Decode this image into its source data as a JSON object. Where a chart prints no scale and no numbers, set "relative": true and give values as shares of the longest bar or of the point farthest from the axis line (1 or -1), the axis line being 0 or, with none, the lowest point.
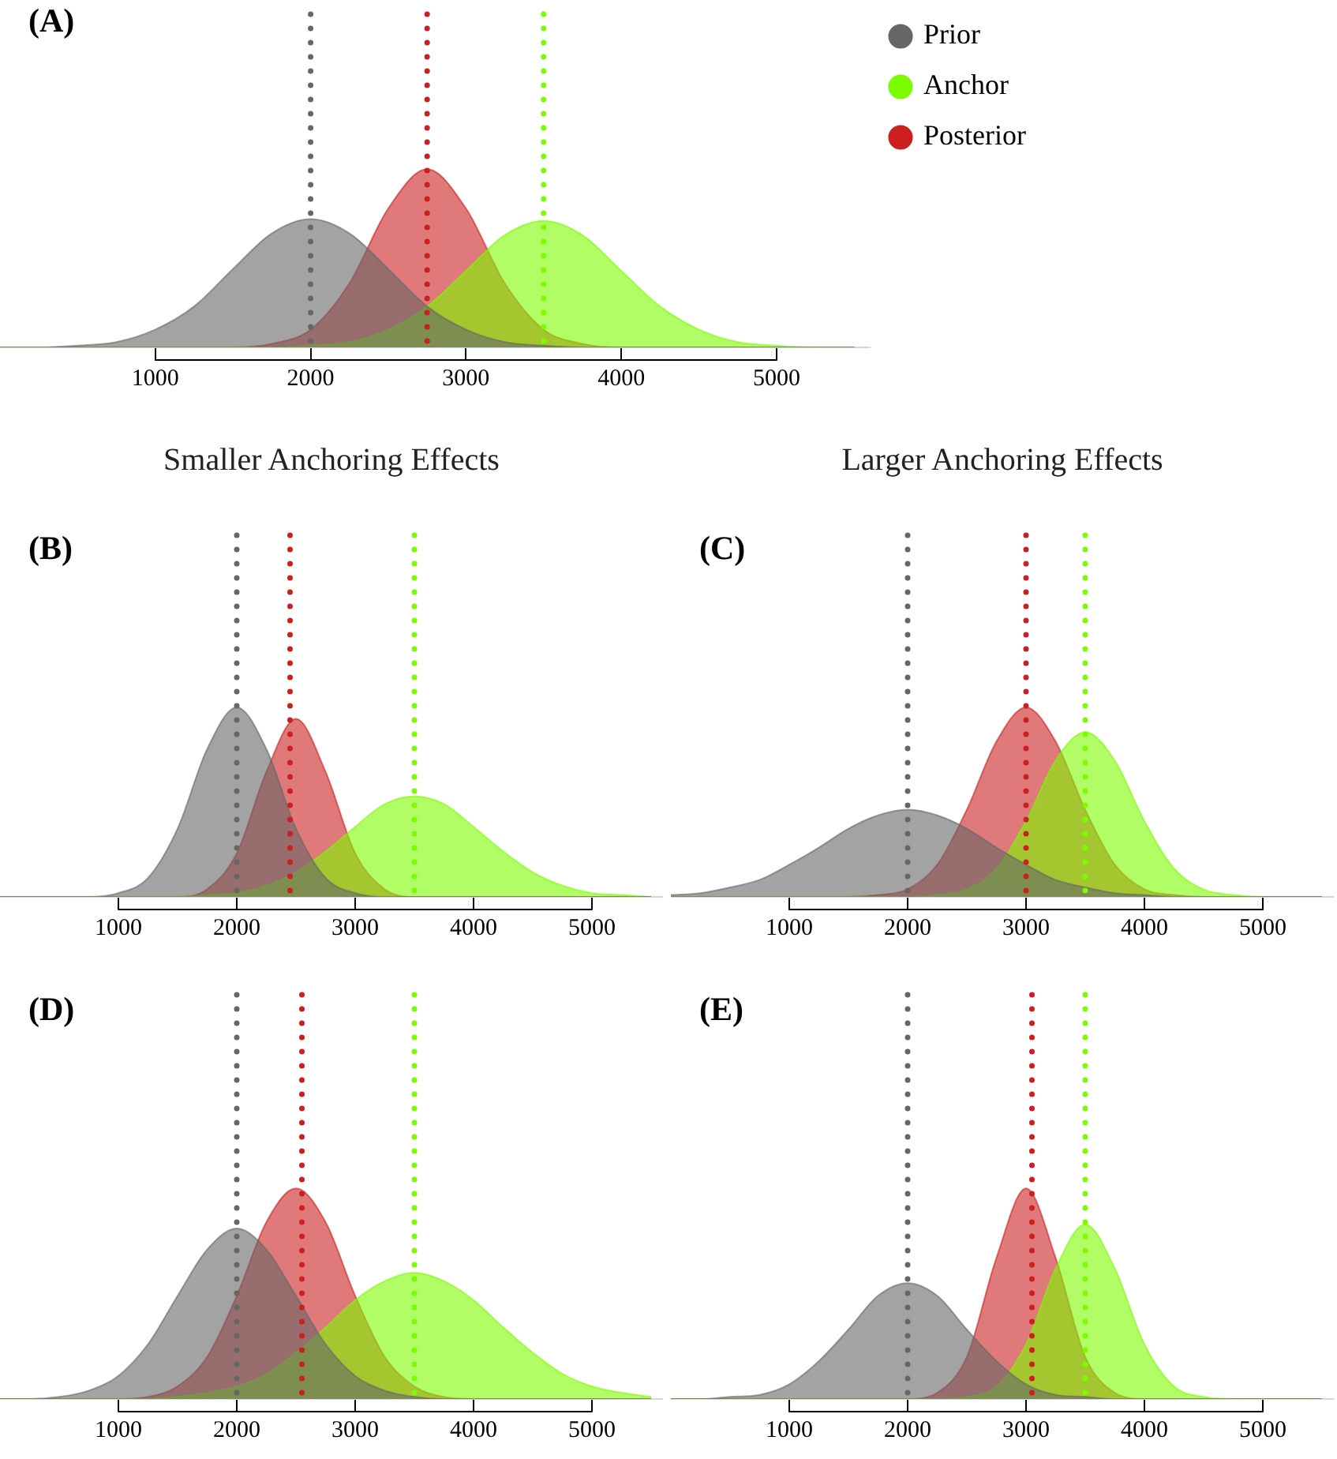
{
  "chart_data": [
    {
      "type": "area",
      "annotations": [
        "(A)"
      ],
      "legend": "right",
      "relative": true,
      "x": [
        0,
        250,
        500,
        750,
        1000,
        1250,
        1500,
        1750,
        2000,
        2250,
        2500,
        2750,
        3000,
        3250,
        3500,
        3750,
        4000,
        4250,
        4500,
        4750,
        5000,
        5250,
        5500
      ],
      "xlim": [
        0,
        5600
      ],
      "xticks": [
        1000,
        2000,
        3000,
        4000,
        5000
      ],
      "series": [
        {
          "name": "Prior",
          "color": "#666666",
          "values": [
            0,
            0,
            0.01,
            0.03,
            0.1,
            0.23,
            0.44,
            0.64,
            0.72,
            0.64,
            0.44,
            0.23,
            0.1,
            0.03,
            0.01,
            0,
            0,
            0,
            0,
            0,
            0,
            0,
            0
          ]
        },
        {
          "name": "Anchor",
          "color": "#7cfc00",
          "values": [
            0,
            0,
            0,
            0,
            0,
            0,
            0,
            0,
            0.01,
            0.03,
            0.1,
            0.23,
            0.43,
            0.63,
            0.71,
            0.63,
            0.43,
            0.23,
            0.1,
            0.03,
            0.01,
            0,
            0
          ]
        },
        {
          "name": "Posterior",
          "color": "#cc1f1f",
          "values": [
            0,
            0,
            0,
            0,
            0,
            0,
            0,
            0.02,
            0.1,
            0.36,
            0.78,
            1,
            0.78,
            0.36,
            0.1,
            0.02,
            0,
            0,
            0,
            0,
            0,
            0,
            0
          ]
        }
      ],
      "ref_lines": [
        {
          "axis": "x",
          "value": 2000,
          "color": "#666666",
          "line_style": "dotted"
        },
        {
          "axis": "x",
          "value": 2750,
          "color": "#cc1f1f",
          "line_style": "dotted"
        },
        {
          "axis": "x",
          "value": 3500,
          "color": "#7cfc00",
          "line_style": "dotted"
        }
      ]
    },
    {
      "type": "area",
      "title": "Smaller Anchoring Effects",
      "annotations": [
        "(B)"
      ],
      "relative": true,
      "x": [
        0,
        250,
        500,
        750,
        1000,
        1250,
        1500,
        1750,
        2000,
        2250,
        2500,
        2750,
        3000,
        3250,
        3500,
        3750,
        4000,
        4250,
        4500,
        4750,
        5000,
        5250,
        5500
      ],
      "xlim": [
        0,
        5600
      ],
      "xticks": [
        1000,
        2000,
        3000,
        4000,
        5000
      ],
      "series": [
        {
          "color": "#666666",
          "values": [
            0,
            0,
            0,
            0,
            0.02,
            0.1,
            0.36,
            0.78,
            1,
            0.78,
            0.36,
            0.1,
            0.02,
            0,
            0,
            0,
            0,
            0,
            0,
            0,
            0,
            0,
            0
          ]
        },
        {
          "color": "#7cfc00",
          "values": [
            0,
            0,
            0,
            0,
            0,
            0,
            0,
            0.01,
            0.02,
            0.06,
            0.13,
            0.24,
            0.37,
            0.49,
            0.53,
            0.49,
            0.37,
            0.24,
            0.13,
            0.06,
            0.02,
            0.01,
            0
          ]
        },
        {
          "color": "#cc1f1f",
          "values": [
            0,
            0,
            0,
            0,
            0,
            0,
            0,
            0.04,
            0.23,
            0.66,
            0.94,
            0.66,
            0.23,
            0.04,
            0,
            0,
            0,
            0,
            0,
            0,
            0,
            0,
            0
          ]
        }
      ],
      "ref_lines": [
        {
          "axis": "x",
          "value": 2000,
          "color": "#666666",
          "line_style": "dotted"
        },
        {
          "axis": "x",
          "value": 2450,
          "color": "#cc1f1f",
          "line_style": "dotted"
        },
        {
          "axis": "x",
          "value": 3500,
          "color": "#7cfc00",
          "line_style": "dotted"
        }
      ]
    },
    {
      "type": "area",
      "title": "Larger Anchoring Effects",
      "annotations": [
        "(C)"
      ],
      "relative": true,
      "x": [
        0,
        250,
        500,
        750,
        1000,
        1250,
        1500,
        1750,
        2000,
        2250,
        2500,
        2750,
        3000,
        3250,
        3500,
        3750,
        4000,
        4250,
        4500,
        4750,
        5000,
        5250,
        5500
      ],
      "xlim": [
        0,
        5600
      ],
      "xticks": [
        1000,
        2000,
        3000,
        4000,
        5000
      ],
      "series": [
        {
          "color": "#666666",
          "values": [
            0.01,
            0.02,
            0.05,
            0.09,
            0.17,
            0.26,
            0.36,
            0.43,
            0.46,
            0.43,
            0.36,
            0.26,
            0.17,
            0.09,
            0.05,
            0.02,
            0.01,
            0,
            0,
            0,
            0,
            0,
            0
          ]
        },
        {
          "color": "#7cfc00",
          "values": [
            0,
            0,
            0,
            0,
            0,
            0,
            0,
            0,
            0,
            0.01,
            0.04,
            0.15,
            0.4,
            0.72,
            0.87,
            0.72,
            0.4,
            0.15,
            0.04,
            0.01,
            0,
            0,
            0
          ]
        },
        {
          "color": "#cc1f1f",
          "values": [
            0,
            0,
            0,
            0,
            0,
            0,
            0,
            0.01,
            0.04,
            0.17,
            0.46,
            0.82,
            1,
            0.82,
            0.46,
            0.17,
            0.04,
            0.01,
            0,
            0,
            0,
            0,
            0
          ]
        }
      ],
      "ref_lines": [
        {
          "axis": "x",
          "value": 2000,
          "color": "#666666",
          "line_style": "dotted"
        },
        {
          "axis": "x",
          "value": 3000,
          "color": "#cc1f1f",
          "line_style": "dotted"
        },
        {
          "axis": "x",
          "value": 3500,
          "color": "#7cfc00",
          "line_style": "dotted"
        }
      ]
    },
    {
      "type": "area",
      "annotations": [
        "(D)"
      ],
      "relative": true,
      "x": [
        0,
        250,
        500,
        750,
        1000,
        1250,
        1500,
        1750,
        2000,
        2250,
        2500,
        2750,
        3000,
        3250,
        3500,
        3750,
        4000,
        4250,
        4500,
        4750,
        5000,
        5250,
        5500
      ],
      "xlim": [
        0,
        5600
      ],
      "xticks": [
        1000,
        2000,
        3000,
        4000,
        5000
      ],
      "series": [
        {
          "color": "#666666",
          "values": [
            0,
            0,
            0.01,
            0.04,
            0.11,
            0.26,
            0.49,
            0.71,
            0.81,
            0.71,
            0.49,
            0.26,
            0.11,
            0.04,
            0.01,
            0,
            0,
            0,
            0,
            0,
            0,
            0,
            0
          ]
        },
        {
          "color": "#7cfc00",
          "values": [
            0,
            0,
            0,
            0,
            0,
            0,
            0.01,
            0.03,
            0.06,
            0.12,
            0.22,
            0.34,
            0.47,
            0.56,
            0.6,
            0.56,
            0.47,
            0.34,
            0.22,
            0.12,
            0.06,
            0.03,
            0.01
          ]
        },
        {
          "color": "#cc1f1f",
          "values": [
            0,
            0,
            0,
            0,
            0,
            0.01,
            0.06,
            0.2,
            0.49,
            0.84,
            1,
            0.84,
            0.49,
            0.2,
            0.06,
            0.01,
            0,
            0,
            0,
            0,
            0,
            0,
            0
          ]
        }
      ],
      "ref_lines": [
        {
          "axis": "x",
          "value": 2000,
          "color": "#666666",
          "line_style": "dotted"
        },
        {
          "axis": "x",
          "value": 2550,
          "color": "#cc1f1f",
          "line_style": "dotted"
        },
        {
          "axis": "x",
          "value": 3500,
          "color": "#7cfc00",
          "line_style": "dotted"
        }
      ]
    },
    {
      "type": "area",
      "annotations": [
        "(E)"
      ],
      "relative": true,
      "x": [
        0,
        250,
        500,
        750,
        1000,
        1250,
        1500,
        1750,
        2000,
        2250,
        2500,
        2750,
        3000,
        3250,
        3500,
        3750,
        4000,
        4250,
        4500,
        4750,
        5000,
        5250,
        5500
      ],
      "xlim": [
        0,
        5600
      ],
      "xticks": [
        1000,
        2000,
        3000,
        4000,
        5000
      ],
      "series": [
        {
          "color": "#666666",
          "values": [
            0,
            0,
            0.01,
            0.02,
            0.07,
            0.18,
            0.33,
            0.49,
            0.55,
            0.49,
            0.33,
            0.18,
            0.07,
            0.02,
            0.01,
            0,
            0,
            0,
            0,
            0,
            0,
            0,
            0
          ]
        },
        {
          "color": "#7cfc00",
          "values": [
            0,
            0,
            0,
            0,
            0,
            0,
            0,
            0,
            0,
            0,
            0.01,
            0.06,
            0.26,
            0.62,
            0.83,
            0.62,
            0.26,
            0.06,
            0.01,
            0,
            0,
            0,
            0
          ]
        },
        {
          "color": "#cc1f1f",
          "values": [
            0,
            0,
            0,
            0,
            0,
            0,
            0,
            0,
            0,
            0.03,
            0.2,
            0.67,
            1,
            0.67,
            0.2,
            0.03,
            0,
            0,
            0,
            0,
            0,
            0,
            0
          ]
        }
      ],
      "ref_lines": [
        {
          "axis": "x",
          "value": 2000,
          "color": "#666666",
          "line_style": "dotted"
        },
        {
          "axis": "x",
          "value": 3050,
          "color": "#cc1f1f",
          "line_style": "dotted"
        },
        {
          "axis": "x",
          "value": 3500,
          "color": "#7cfc00",
          "line_style": "dotted"
        }
      ]
    }
  ]
}
